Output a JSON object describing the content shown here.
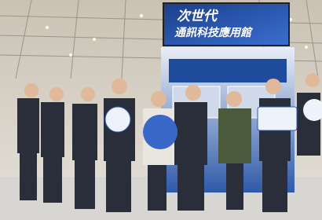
{
  "screen": {
    "line1": "次世代",
    "line2": "通訊科技應用館"
  }
}
